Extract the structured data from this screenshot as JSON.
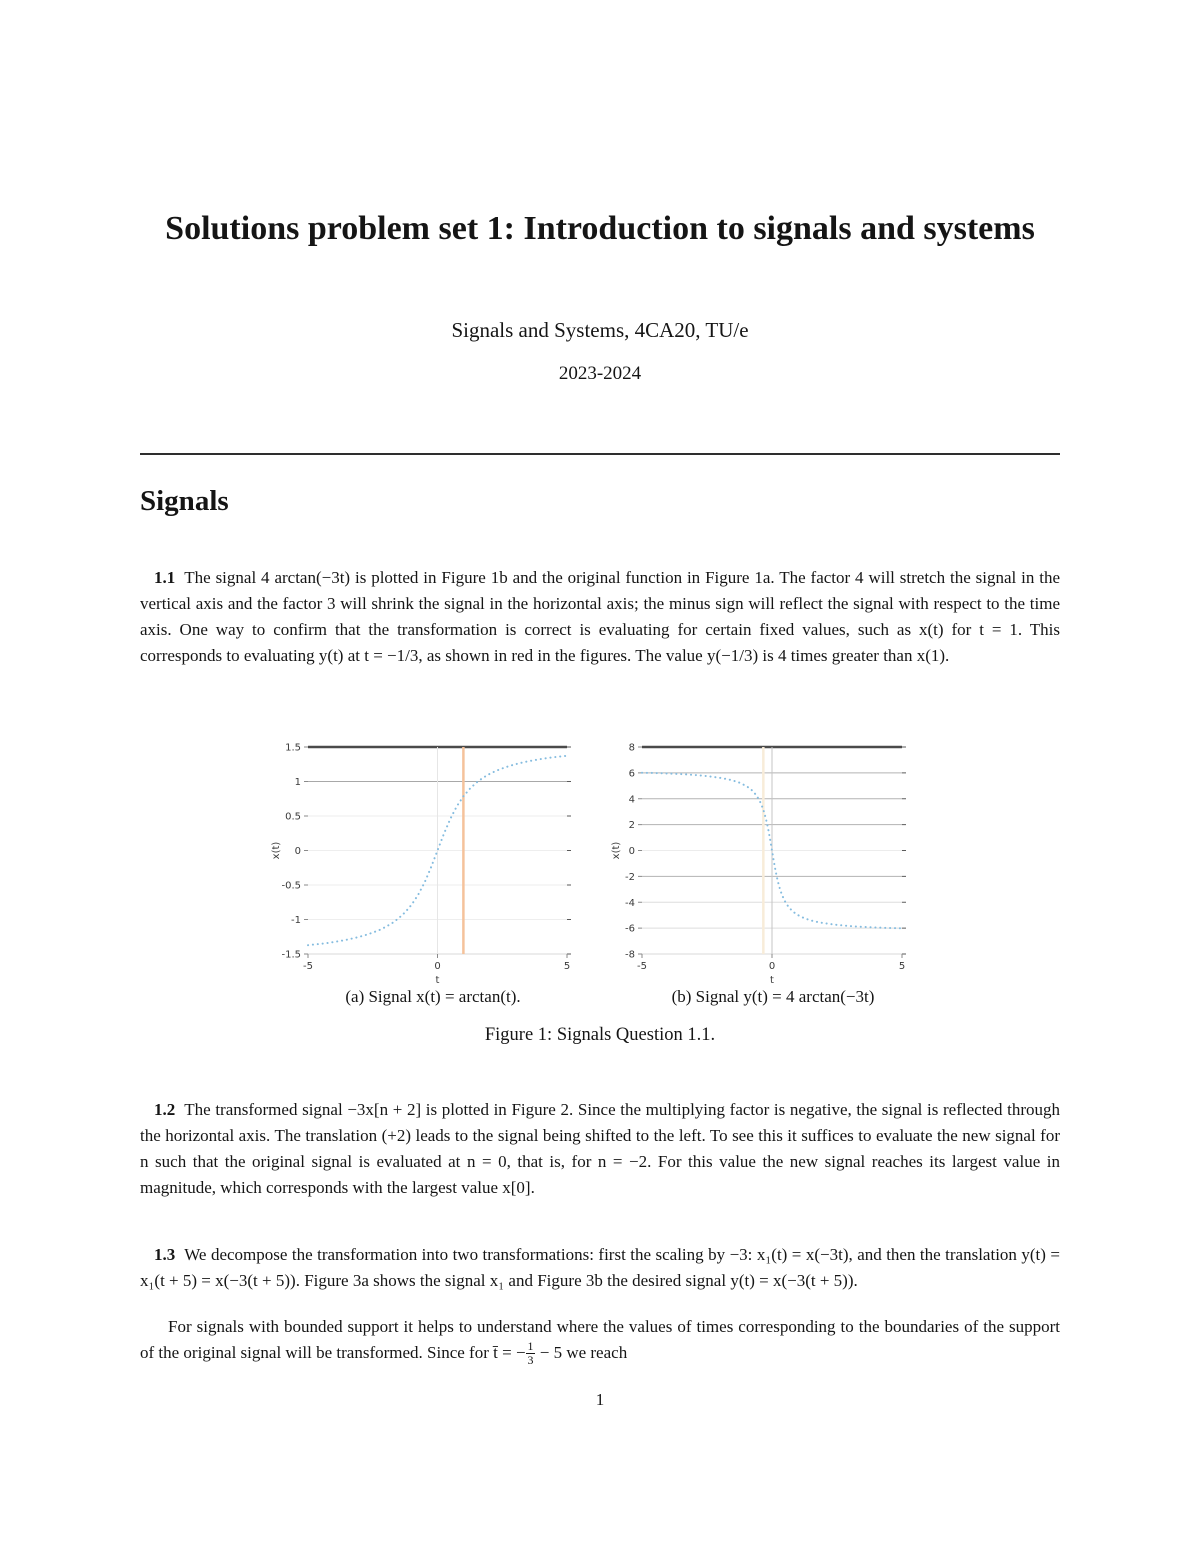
{
  "header": {
    "title": "Solutions problem set 1: Introduction to signals and systems",
    "subtitle": "Signals and Systems, 4CA20, TU/e",
    "year": "2023-2024"
  },
  "section": {
    "heading": "Signals"
  },
  "paragraphs": {
    "p11": {
      "label": "1.1",
      "text": "The signal 4 arctan(−3t) is plotted in Figure 1b and the original function in Figure 1a. The factor 4 will stretch the signal in the vertical axis and the factor 3 will shrink the signal in the horizontal axis; the minus sign will reflect the signal with respect to the time axis. One way to confirm that the transformation is correct is evaluating for certain fixed values, such as x(t) for t = 1. This corresponds to evaluating y(t) at t = −1/3, as shown in red in the figures. The value y(−1/3) is 4 times greater than x(1)."
    },
    "p12": {
      "label": "1.2",
      "text": "The transformed signal −3x[n + 2] is plotted in Figure 2. Since the multiplying factor is negative, the signal is reflected through the horizontal axis. The translation (+2) leads to the signal being shifted to the left. To see this it suffices to evaluate the new signal for n such that the original signal is evaluated at n = 0, that is, for n = −2. For this value the new signal reaches its largest value in magnitude, which corresponds with the largest value x[0]."
    },
    "p13": {
      "label": "1.3",
      "text": "We decompose the transformation into two transformations: first the scaling by −3: x₁(t) = x(−3t), and then the translation y(t) = x₁(t + 5) = x(−3(t + 5)). Figure 3a shows the signal x₁ and Figure 3b the desired signal y(t) = x(−3(t + 5))."
    },
    "p13_cont": {
      "text_pre": "For signals with bounded support it helps to understand where the values of times corresponding to the boundaries of the support of the original signal will be transformed. Since for t̄ = −",
      "frac_num": "1",
      "frac_den": "3",
      "text_post": " − 5 we reach"
    }
  },
  "figure1": {
    "caption": "Figure 1: Signals Question 1.1.",
    "chart_data": [
      {
        "type": "line",
        "caption": "(a) Signal x(t) = arctan(t).",
        "xlabel": "t",
        "ylabel": "x(t)",
        "xlim": [
          -5,
          5
        ],
        "ylim": [
          -1.5,
          1.5
        ],
        "xticks": [
          -5,
          0,
          5
        ],
        "yticks": [
          1.5,
          1,
          0.5,
          0,
          -0.5,
          -1,
          -1.5
        ],
        "grid_h": [
          {
            "y": 1.5,
            "color": "#4a4a4a",
            "w": 2.5
          },
          {
            "y": 1,
            "color": "#a8a8a8",
            "w": 1
          },
          {
            "y": 0.5,
            "color": "#eeeeee",
            "w": 1
          },
          {
            "y": 0,
            "color": "#eeeeee",
            "w": 1
          },
          {
            "y": -0.5,
            "color": "#eeeeee",
            "w": 1
          },
          {
            "y": -1,
            "color": "#eeeeee",
            "w": 1
          },
          {
            "y": -1.5,
            "color": "#d8d8d8",
            "w": 1
          }
        ],
        "grid_v": [
          {
            "x": 0,
            "color": "#e6e6e6",
            "w": 1
          }
        ],
        "ref_lines": [
          {
            "x": 1,
            "color": "#f5c29b",
            "w": 2.5
          }
        ],
        "line_color": "#85bcdf",
        "x": [
          -5,
          -4.75,
          -4.5,
          -4.25,
          -4,
          -3.75,
          -3.5,
          -3.25,
          -3,
          -2.75,
          -2.5,
          -2.25,
          -2,
          -1.75,
          -1.5,
          -1.25,
          -1,
          -0.75,
          -0.5,
          -0.25,
          0,
          0.25,
          0.5,
          0.75,
          1,
          1.25,
          1.5,
          1.75,
          2,
          2.25,
          2.5,
          2.75,
          3,
          3.25,
          3.5,
          3.75,
          4,
          4.25,
          4.5,
          4.75,
          5
        ],
        "y": [
          -1.373,
          -1.363,
          -1.352,
          -1.34,
          -1.326,
          -1.31,
          -1.293,
          -1.272,
          -1.249,
          -1.222,
          -1.19,
          -1.153,
          -1.107,
          -1.052,
          -0.983,
          -0.896,
          -0.785,
          -0.644,
          -0.464,
          -0.245,
          0,
          0.245,
          0.464,
          0.644,
          0.785,
          0.896,
          0.983,
          1.052,
          1.107,
          1.153,
          1.19,
          1.222,
          1.249,
          1.272,
          1.293,
          1.31,
          1.326,
          1.34,
          1.352,
          1.363,
          1.373
        ]
      },
      {
        "type": "line",
        "caption": "(b) Signal y(t) = 4 arctan(−3t)",
        "xlabel": "t",
        "ylabel": "x(t)",
        "xlim": [
          -5,
          5
        ],
        "ylim": [
          -8,
          8
        ],
        "xticks": [
          -5,
          0,
          5
        ],
        "yticks": [
          8,
          6,
          4,
          2,
          0,
          -2,
          -4,
          -6,
          -8
        ],
        "grid_h": [
          {
            "y": 8,
            "color": "#4a4a4a",
            "w": 2.5
          },
          {
            "y": 6,
            "color": "#b3b3b3",
            "w": 1
          },
          {
            "y": 4,
            "color": "#b3b3b3",
            "w": 1
          },
          {
            "y": 2,
            "color": "#b3b3b3",
            "w": 1
          },
          {
            "y": 0,
            "color": "#ececec",
            "w": 1
          },
          {
            "y": -2,
            "color": "#b3b3b3",
            "w": 1
          },
          {
            "y": -4,
            "color": "#dedede",
            "w": 1
          },
          {
            "y": -6,
            "color": "#dedede",
            "w": 1
          },
          {
            "y": -8,
            "color": "#d8d8d8",
            "w": 1
          }
        ],
        "grid_v": [
          {
            "x": 0,
            "color": "#c4c4c4",
            "w": 1
          }
        ],
        "ref_lines": [
          {
            "x": -0.333,
            "color": "#f8ecd9",
            "w": 2.5
          }
        ],
        "line_color": "#85bcdf",
        "x": [
          -5,
          -4.5,
          -4,
          -3.5,
          -3,
          -2.5,
          -2,
          -1.75,
          -1.5,
          -1.25,
          -1,
          -0.9,
          -0.8,
          -0.7,
          -0.6,
          -0.5,
          -0.45,
          -0.4,
          -0.35,
          -0.3,
          -0.25,
          -0.2,
          -0.15,
          -0.1,
          -0.05,
          0,
          0.05,
          0.1,
          0.15,
          0.2,
          0.25,
          0.3,
          0.35,
          0.4,
          0.45,
          0.5,
          0.6,
          0.7,
          0.8,
          0.9,
          1,
          1.25,
          1.5,
          1.75,
          2,
          2.5,
          3,
          3.5,
          4,
          4.5,
          5
        ],
        "y": [
          6.017,
          5.988,
          5.951,
          5.903,
          5.84,
          5.753,
          5.622,
          5.53,
          5.408,
          5.241,
          4.996,
          4.864,
          4.704,
          4.506,
          4.255,
          3.931,
          3.735,
          3.504,
          3.239,
          2.931,
          2.574,
          2.162,
          1.692,
          1.166,
          0.595,
          0,
          -0.595,
          -1.166,
          -1.692,
          -2.162,
          -2.574,
          -2.931,
          -3.239,
          -3.504,
          -3.735,
          -3.931,
          -4.255,
          -4.506,
          -4.704,
          -4.864,
          -4.996,
          -5.241,
          -5.408,
          -5.53,
          -5.622,
          -5.753,
          -5.84,
          -5.903,
          -5.951,
          -5.988,
          -6.017
        ]
      }
    ]
  },
  "footer": {
    "page_number": "1"
  }
}
